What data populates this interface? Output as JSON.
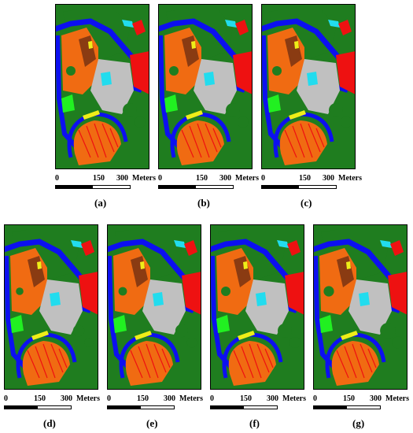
{
  "colors": {
    "green": "#1f7d1f",
    "blue": "#0c10f0",
    "orange": "#f06b12",
    "brown": "#8a3b12",
    "red": "#ee1111",
    "gray": "#c0c0c0",
    "cyan": "#22dcee",
    "lime": "#21f021",
    "yellow": "#eeee18",
    "white": "#ffffff"
  },
  "scale": {
    "t0": "0",
    "t150": "150",
    "t300": "300",
    "unit": "Meters"
  },
  "panels": [
    {
      "id": "a",
      "caption": "(a)"
    },
    {
      "id": "b",
      "caption": "(b)"
    },
    {
      "id": "c",
      "caption": "(c)"
    },
    {
      "id": "d",
      "caption": "(d)"
    },
    {
      "id": "e",
      "caption": "(e)"
    },
    {
      "id": "f",
      "caption": "(f)"
    },
    {
      "id": "g",
      "caption": "(g)"
    }
  ]
}
